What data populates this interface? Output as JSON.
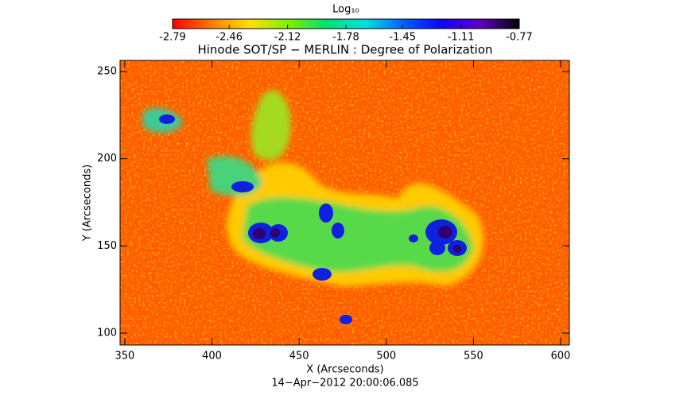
{
  "chart_data": {
    "type": "image",
    "title": "Hinode SOT/SP − MERLIN : Degree of Polarization",
    "colorbar_label": "Log₁₀",
    "clim": [
      -2.79,
      -0.77
    ],
    "cticks": [
      -2.79,
      -2.46,
      -2.12,
      -1.78,
      -1.45,
      -1.11,
      -0.77
    ],
    "colormap": [
      "#ff0000",
      "#ff7a00",
      "#ffe000",
      "#7ff000",
      "#00e070",
      "#00e0e0",
      "#0060ff",
      "#1000ff",
      "#6000c0",
      "#000000"
    ],
    "xlabel": "X (Arcseconds)",
    "ylabel": "Y (Arcseconds)",
    "xlim": [
      347.3,
      605
    ],
    "ylim": [
      93.2,
      256.4
    ],
    "xticks": [
      350,
      400,
      450,
      500,
      550,
      600
    ],
    "yticks": [
      100,
      150,
      200,
      250
    ],
    "footer": "14−Apr−2012 20:00:06.085"
  }
}
